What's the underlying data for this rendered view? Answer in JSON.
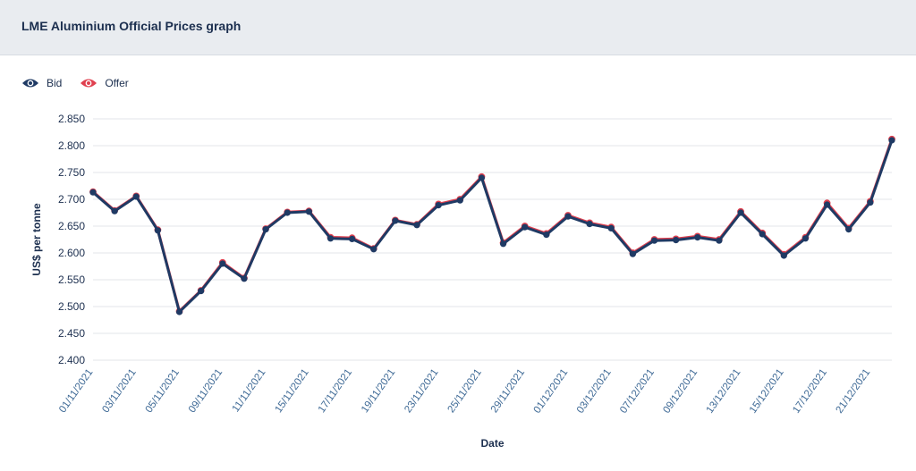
{
  "header": {
    "title": "LME Aluminium Official Prices graph"
  },
  "legend": {
    "items": [
      {
        "label": "Bid",
        "color": "#1f3a64",
        "icon": "eye-icon"
      },
      {
        "label": "Offer",
        "color": "#e0404f",
        "icon": "eye-icon"
      }
    ]
  },
  "chart_data": {
    "type": "line",
    "xlabel": "Date",
    "ylabel": "US$ per tonne",
    "ylim": [
      2400,
      2850
    ],
    "yticks": [
      2400,
      2450,
      2500,
      2550,
      2600,
      2650,
      2700,
      2750,
      2800,
      2850
    ],
    "ytick_labels": [
      "2.400",
      "2.450",
      "2.500",
      "2.550",
      "2.600",
      "2.650",
      "2.700",
      "2.750",
      "2.800",
      "2.850"
    ],
    "grid": true,
    "legend_position": "top-left",
    "x": [
      "01/11/2021",
      "02/11/2021",
      "03/11/2021",
      "04/11/2021",
      "05/11/2021",
      "08/11/2021",
      "09/11/2021",
      "10/11/2021",
      "11/11/2021",
      "12/11/2021",
      "15/11/2021",
      "16/11/2021",
      "17/11/2021",
      "18/11/2021",
      "19/11/2021",
      "22/11/2021",
      "23/11/2021",
      "24/11/2021",
      "25/11/2021",
      "26/11/2021",
      "29/11/2021",
      "30/11/2021",
      "01/12/2021",
      "02/12/2021",
      "03/12/2021",
      "06/12/2021",
      "07/12/2021",
      "08/12/2021",
      "09/12/2021",
      "10/12/2021",
      "13/12/2021",
      "14/12/2021",
      "15/12/2021",
      "16/12/2021",
      "17/12/2021",
      "20/12/2021",
      "21/12/2021",
      "22/12/2021"
    ],
    "x_tick_labels": [
      "01/11/2021",
      "03/11/2021",
      "05/11/2021",
      "09/11/2021",
      "11/11/2021",
      "15/11/2021",
      "17/11/2021",
      "19/11/2021",
      "23/11/2021",
      "25/11/2021",
      "29/11/2021",
      "01/12/2021",
      "03/12/2021",
      "07/12/2021",
      "09/12/2021",
      "13/12/2021",
      "15/12/2021",
      "17/12/2021",
      "21/12/2021"
    ],
    "series": [
      {
        "name": "Bid",
        "color": "#1f3a64",
        "values": [
          2713,
          2678,
          2705,
          2642,
          2490,
          2529,
          2580,
          2552,
          2644,
          2675,
          2677,
          2627,
          2626,
          2607,
          2660,
          2652,
          2689,
          2698,
          2740,
          2617,
          2648,
          2634,
          2668,
          2654,
          2646,
          2598,
          2623,
          2624,
          2629,
          2623,
          2675,
          2635,
          2595,
          2627,
          2690,
          2644,
          2694,
          2810
        ]
      },
      {
        "name": "Offer",
        "color": "#e0404f",
        "values": [
          2714,
          2679,
          2706,
          2643,
          2491,
          2530,
          2582,
          2553,
          2645,
          2676,
          2678,
          2629,
          2628,
          2608,
          2661,
          2653,
          2691,
          2700,
          2742,
          2619,
          2650,
          2636,
          2670,
          2656,
          2648,
          2600,
          2625,
          2626,
          2631,
          2625,
          2677,
          2637,
          2597,
          2629,
          2693,
          2646,
          2696,
          2812
        ]
      }
    ]
  }
}
